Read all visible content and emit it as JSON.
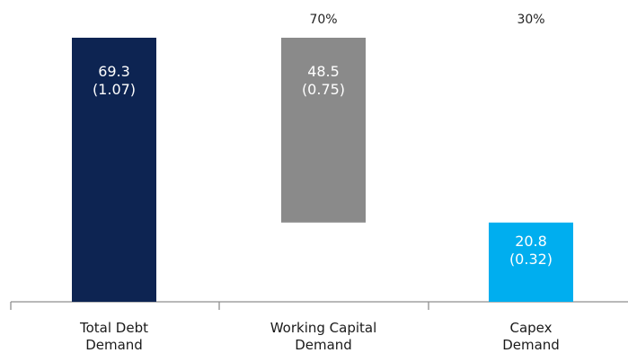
{
  "chart_data": {
    "type": "bar",
    "subtype": "waterfall",
    "categories": [
      "Total Debt Demand",
      "Working Capital Demand",
      "Capex Demand"
    ],
    "category_lines": [
      [
        "Total Debt",
        "Demand"
      ],
      [
        "Working Capital",
        "Demand"
      ],
      [
        "Capex",
        "Demand"
      ]
    ],
    "bars": [
      {
        "category": "Total Debt Demand",
        "base": 0,
        "value": 69.3,
        "label": "69.3",
        "sublabel": "(1.07)",
        "color": "#0d2452"
      },
      {
        "category": "Working Capital Demand",
        "base": 20.8,
        "value": 48.5,
        "label": "48.5",
        "sublabel": "(0.75)",
        "color": "#8a8a8a"
      },
      {
        "category": "Capex Demand",
        "base": 0,
        "value": 20.8,
        "label": "20.8",
        "sublabel": "(0.32)",
        "color": "#00aeef"
      }
    ],
    "share_labels": [
      "",
      "70%",
      "30%"
    ],
    "ylim": [
      0,
      69.3
    ],
    "title": "",
    "xlabel": "",
    "ylabel": "",
    "grid": false,
    "legend": "none"
  }
}
